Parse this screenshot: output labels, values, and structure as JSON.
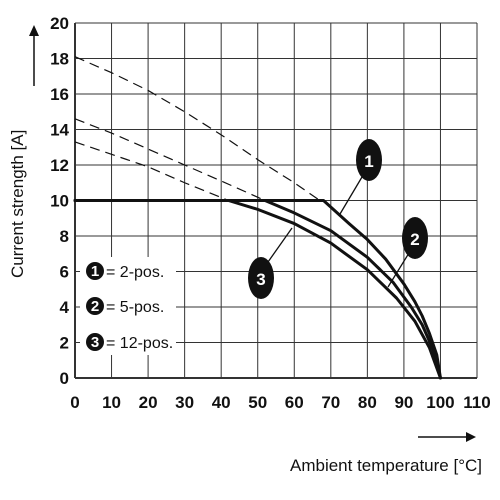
{
  "chart_data": {
    "type": "line",
    "xlabel": "Ambient temperature [°C]",
    "ylabel": "Current strength [A]",
    "xlim": [
      0,
      110
    ],
    "ylim": [
      0,
      20
    ],
    "x_ticks": [
      "0",
      "10",
      "20",
      "30",
      "40",
      "50",
      "60",
      "70",
      "80",
      "90",
      "100",
      "110"
    ],
    "y_ticks": [
      "0",
      "2",
      "4",
      "6",
      "8",
      "10",
      "12",
      "14",
      "16",
      "18",
      "20"
    ],
    "grid": true,
    "colors": {
      "line": "#111111",
      "grid": "#333333",
      "badge": "#111111"
    },
    "series": [
      {
        "marker": "1",
        "name": "2-pos.",
        "dashed_x": [
          0,
          10,
          20,
          30,
          40,
          50,
          60,
          67
        ],
        "dashed_y": [
          18.1,
          17.2,
          16.2,
          15.0,
          13.7,
          12.3,
          11.0,
          10.0
        ],
        "x": [
          0,
          68,
          75,
          80,
          85,
          90,
          93,
          95,
          97,
          99,
          100
        ],
        "y": [
          10,
          10,
          8.7,
          7.8,
          6.7,
          5.3,
          4.3,
          3.5,
          2.5,
          1.3,
          0
        ]
      },
      {
        "marker": "2",
        "name": "5-pos.",
        "dashed_x": [
          0,
          10,
          20,
          30,
          40,
          52
        ],
        "dashed_y": [
          14.6,
          13.8,
          12.9,
          12.0,
          11.1,
          10.0
        ],
        "x": [
          0,
          52,
          60,
          70,
          80,
          87,
          92,
          95,
          98,
          100
        ],
        "y": [
          10,
          10,
          9.3,
          8.3,
          6.8,
          5.4,
          4.0,
          3.0,
          1.6,
          0
        ]
      },
      {
        "marker": "3",
        "name": "12-pos.",
        "dashed_x": [
          0,
          10,
          20,
          30,
          42
        ],
        "dashed_y": [
          13.3,
          12.6,
          11.9,
          11.0,
          10.0
        ],
        "x": [
          0,
          42,
          50,
          60,
          70,
          80,
          88,
          93,
          97,
          100
        ],
        "y": [
          10,
          10,
          9.5,
          8.7,
          7.6,
          6.1,
          4.5,
          3.2,
          1.7,
          0
        ]
      }
    ],
    "legend": {
      "placement": "bottom-left",
      "entries": [
        {
          "marker": "1",
          "text": "= 2-pos."
        },
        {
          "marker": "2",
          "text": "= 5-pos."
        },
        {
          "marker": "3",
          "text": "= 12-pos."
        }
      ]
    }
  }
}
